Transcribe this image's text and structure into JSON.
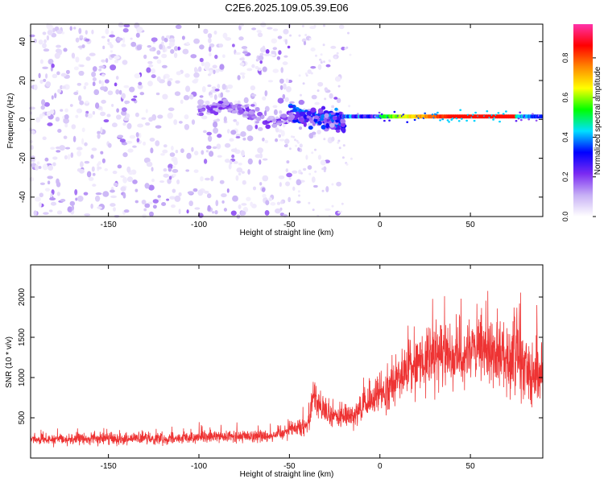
{
  "figure_title": "C2E6.2025.109.05.39.E06",
  "chart_data": [
    {
      "type": "heatmap",
      "title": "C2E6.2025.109.05.39.E06",
      "xlabel": "Height of straight line (km)",
      "ylabel": "Frequency (Hz)",
      "xlim": [
        -193,
        90
      ],
      "ylim": [
        -50,
        49
      ],
      "x_ticks": [
        -150,
        -100,
        -50,
        0,
        50
      ],
      "y_ticks": [
        -40,
        -20,
        0,
        20,
        40
      ],
      "colorbar": {
        "label": "Normalized spectral amplitude",
        "range": [
          0,
          0.97
        ],
        "ticks": [
          0.0,
          0.2,
          0.4,
          0.6,
          0.8
        ],
        "colors": [
          "#ffffff",
          "#c7b0f5",
          "#7b2bf2",
          "#0000ff",
          "#00e0ff",
          "#00ff00",
          "#ffff00",
          "#ff8800",
          "#ff0000",
          "#ff33aa"
        ]
      },
      "features": {
        "noise_region_km": [
          -193,
          -50
        ],
        "noise_amplitude_level": 0.05,
        "band_start_km": -100,
        "band_center_hz": 1.5,
        "strong_band_km": [
          0,
          75
        ],
        "peak_amplitude": 0.85
      }
    },
    {
      "type": "line",
      "xlabel": "Height of straight line (km)",
      "ylabel": "SNR (10 * v/v)",
      "xlim": [
        -193,
        90
      ],
      "ylim": [
        0,
        2400
      ],
      "x_ticks": [
        -150,
        -100,
        -50,
        0,
        50
      ],
      "y_ticks": [
        500,
        1000,
        1500,
        2000
      ],
      "series": [
        {
          "name": "SNR",
          "color": "#ee3333",
          "x": [
            -190,
            -150,
            -100,
            -60,
            -40,
            -37,
            -30,
            -20,
            -10,
            0,
            10,
            20,
            30,
            40,
            50,
            60,
            70,
            75,
            80,
            85,
            90
          ],
          "y": [
            230,
            240,
            250,
            280,
            420,
            800,
            540,
            500,
            600,
            800,
            1000,
            1180,
            1250,
            1280,
            1300,
            1320,
            1300,
            1250,
            1150,
            1050,
            1100
          ]
        }
      ]
    }
  ]
}
